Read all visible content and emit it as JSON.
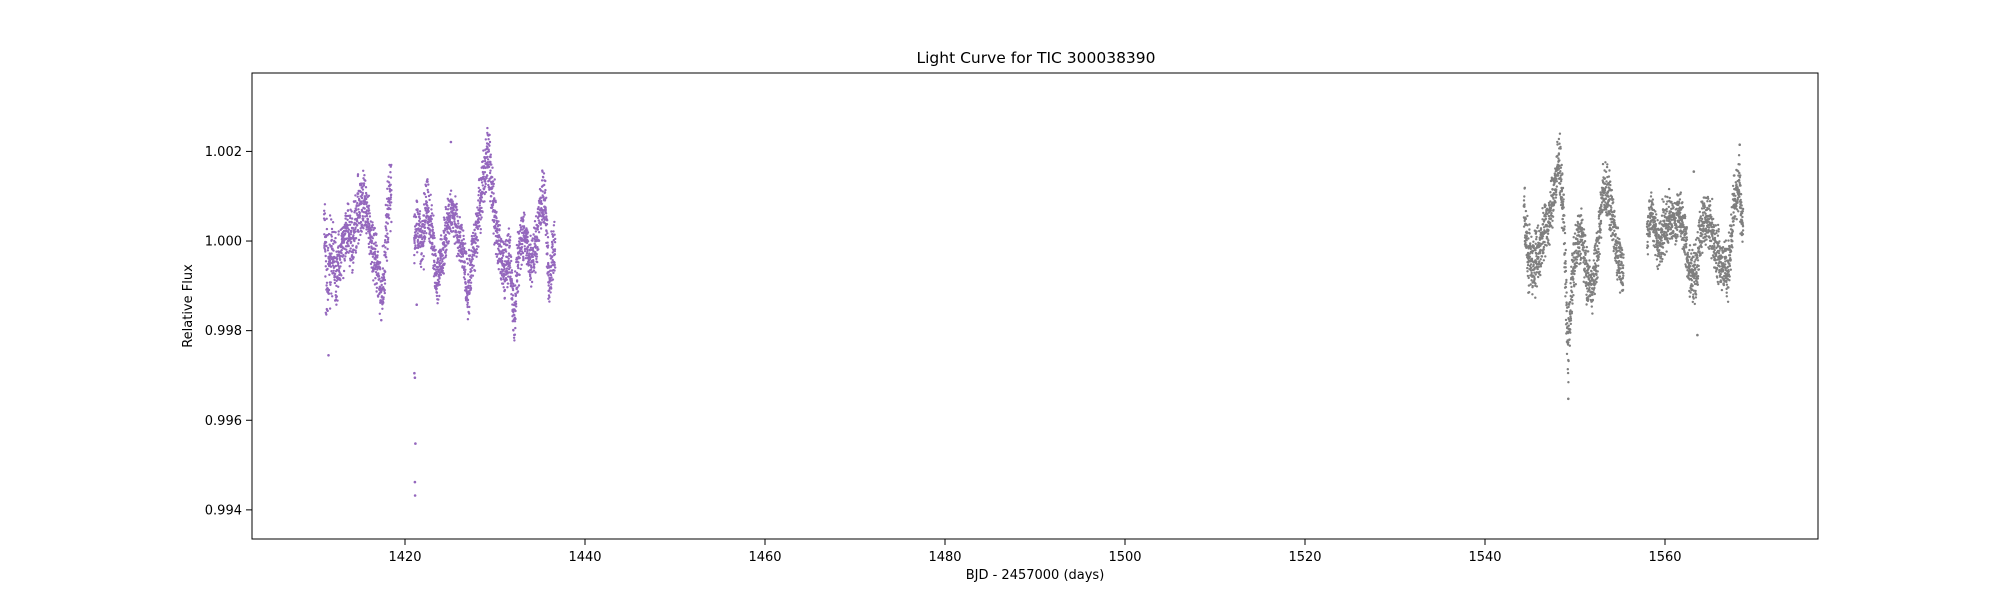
{
  "chart_data": {
    "type": "scatter",
    "title": "Light Curve for TIC 300038390",
    "xlabel": "BJD - 2457000 (days)",
    "ylabel": "Relative Flux",
    "xlim": [
      1403,
      1577
    ],
    "ylim": [
      0.99335,
      1.00375
    ],
    "xticks": [
      1420,
      1440,
      1460,
      1480,
      1500,
      1520,
      1540,
      1560
    ],
    "xtick_labels": [
      "1420",
      "1440",
      "1460",
      "1480",
      "1500",
      "1520",
      "1540",
      "1560"
    ],
    "yticks": [
      0.994,
      0.996,
      0.998,
      1.0,
      1.002
    ],
    "ytick_labels": [
      "0.994",
      "0.996",
      "0.998",
      "1.000",
      "1.002"
    ],
    "grid": false,
    "legend": "none",
    "series": [
      {
        "color": "#9467bd",
        "x_range": [
          1411.0,
          1436.7
        ],
        "envelope": [
          [
            1411.0,
            0.9998,
            1.0012
          ],
          [
            1411.3,
            0.9975,
            1.0006
          ],
          [
            1411.8,
            0.9987,
            1.001
          ],
          [
            1412.4,
            0.9984,
            1.0002
          ],
          [
            1413.0,
            0.999,
            1.0005
          ],
          [
            1413.6,
            0.9995,
            1.001
          ],
          [
            1414.2,
            0.9992,
            1.0008
          ],
          [
            1414.8,
            0.9998,
            1.0016
          ],
          [
            1415.3,
            1.0,
            1.0018
          ],
          [
            1415.9,
            0.9998,
            1.0012
          ],
          [
            1416.4,
            0.999,
            1.0006
          ],
          [
            1416.9,
            0.9988,
            1.0002
          ],
          [
            1417.4,
            0.998,
            0.9995
          ],
          [
            1417.8,
            0.9988,
            1.0008
          ],
          [
            1418.2,
            0.9998,
            1.0019
          ],
          [
            1418.5,
            1.0002,
            1.002
          ],
          [
            1421.0,
            0.999,
            1.0012
          ],
          [
            1421.5,
            0.9995,
            1.001
          ],
          [
            1422.0,
            0.999,
            1.001
          ],
          [
            1422.5,
            1.0002,
            1.0017
          ],
          [
            1423.0,
            0.9995,
            1.001
          ],
          [
            1423.5,
            0.9985,
            0.9998
          ],
          [
            1424.2,
            0.999,
            1.0004
          ],
          [
            1424.8,
            0.9998,
            1.0012
          ],
          [
            1425.3,
            1.0,
            1.0013
          ],
          [
            1425.9,
            0.9995,
            1.0008
          ],
          [
            1426.5,
            0.999,
            1.0003
          ],
          [
            1427.0,
            0.998,
            0.9997
          ],
          [
            1427.5,
            0.9988,
            1.0005
          ],
          [
            1428.0,
            0.9995,
            1.001
          ],
          [
            1428.6,
            1.0005,
            1.002
          ],
          [
            1429.2,
            1.0012,
            1.0028
          ],
          [
            1429.8,
            1.0,
            1.0018
          ],
          [
            1430.4,
            0.9992,
            1.0006
          ],
          [
            1431.0,
            0.9985,
            1.0002
          ],
          [
            1431.6,
            0.999,
            1.0005
          ],
          [
            1432.1,
            0.9975,
            0.999
          ],
          [
            1432.7,
            0.999,
            1.0008
          ],
          [
            1433.3,
            0.9995,
            1.0008
          ],
          [
            1433.9,
            0.9988,
            1.0002
          ],
          [
            1434.5,
            0.9992,
            1.0007
          ],
          [
            1435.1,
            1.0,
            1.0015
          ],
          [
            1435.5,
            1.0002,
            1.002
          ],
          [
            1436.0,
            0.9982,
            0.9998
          ],
          [
            1436.4,
            0.999,
            1.0005
          ],
          [
            1436.7,
            0.9992,
            1.0004
          ]
        ],
        "outliers": [
          [
            1421.05,
            0.99705
          ],
          [
            1421.1,
            0.99695
          ],
          [
            1421.15,
            0.99548
          ],
          [
            1421.1,
            0.99462
          ],
          [
            1421.12,
            0.99432
          ],
          [
            1421.3,
            0.99858
          ],
          [
            1425.1,
            1.00221
          ],
          [
            1411.5,
            0.99745
          ]
        ]
      },
      {
        "color": "#7f7f7f",
        "x_range": [
          1544.3,
          1568.7
        ],
        "envelope": [
          [
            1544.3,
            1.0,
            1.0015
          ],
          [
            1544.8,
            0.9988,
            1.0005
          ],
          [
            1545.4,
            0.9985,
            1.0003
          ],
          [
            1546.0,
            0.999,
            1.0005
          ],
          [
            1546.6,
            0.9995,
            1.001
          ],
          [
            1547.2,
            0.9998,
            1.0012
          ],
          [
            1547.8,
            1.0005,
            1.002
          ],
          [
            1548.3,
            1.001,
            1.0026
          ],
          [
            1548.8,
            0.9995,
            1.001
          ],
          [
            1549.2,
            0.9965,
            0.9985
          ],
          [
            1549.6,
            0.998,
            0.9998
          ],
          [
            1550.1,
            0.999,
            1.0006
          ],
          [
            1550.7,
            0.9995,
            1.001
          ],
          [
            1551.3,
            0.9985,
            1.0
          ],
          [
            1551.9,
            0.9983,
            0.9996
          ],
          [
            1552.5,
            0.999,
            1.0005
          ],
          [
            1553.1,
            1.0005,
            1.0018
          ],
          [
            1553.7,
            1.0002,
            1.0018
          ],
          [
            1554.3,
            0.9995,
            1.001
          ],
          [
            1554.9,
            0.9988,
            1.0003
          ],
          [
            1555.4,
            0.9988,
            1.0
          ],
          [
            1558.0,
            0.9995,
            1.001
          ],
          [
            1558.6,
            1.0,
            1.0012
          ],
          [
            1559.2,
            0.9992,
            1.0006
          ],
          [
            1559.8,
            0.9995,
            1.001
          ],
          [
            1560.4,
            0.9998,
            1.0012
          ],
          [
            1561.0,
            0.9998,
            1.001
          ],
          [
            1561.6,
            1.0,
            1.0013
          ],
          [
            1562.2,
            0.9995,
            1.0008
          ],
          [
            1562.8,
            0.9985,
            1.0
          ],
          [
            1563.4,
            0.9985,
            1.0
          ],
          [
            1564.0,
            0.9995,
            1.001
          ],
          [
            1564.6,
            0.9998,
            1.0012
          ],
          [
            1565.2,
            0.9995,
            1.001
          ],
          [
            1565.8,
            0.999,
            1.0005
          ],
          [
            1566.4,
            0.9988,
            1.0002
          ],
          [
            1567.0,
            0.9985,
            1.0
          ],
          [
            1567.6,
            1.0,
            1.0015
          ],
          [
            1568.2,
            1.0005,
            1.002
          ],
          [
            1568.7,
            0.9995,
            1.0008
          ]
        ],
        "outliers": [
          [
            1549.25,
            0.99648
          ],
          [
            1563.2,
            1.00155
          ],
          [
            1563.6,
            0.9979
          ],
          [
            1568.3,
            1.00215
          ]
        ]
      }
    ]
  }
}
